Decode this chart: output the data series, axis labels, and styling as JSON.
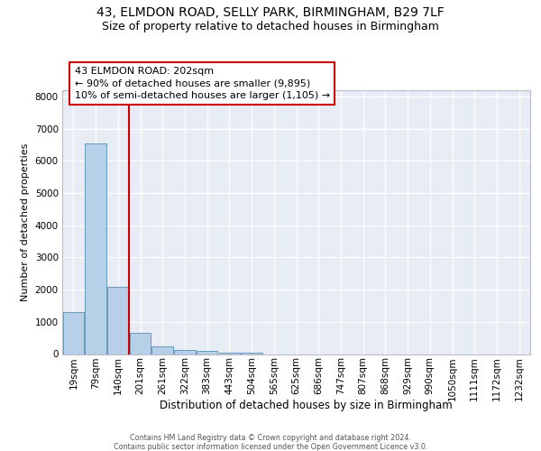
{
  "title1": "43, ELMDON ROAD, SELLY PARK, BIRMINGHAM, B29 7LF",
  "title2": "Size of property relative to detached houses in Birmingham",
  "xlabel": "Distribution of detached houses by size in Birmingham",
  "ylabel": "Number of detached properties",
  "categories": [
    "19sqm",
    "79sqm",
    "140sqm",
    "201sqm",
    "261sqm",
    "322sqm",
    "383sqm",
    "443sqm",
    "504sqm",
    "565sqm",
    "625sqm",
    "686sqm",
    "747sqm",
    "807sqm",
    "868sqm",
    "929sqm",
    "990sqm",
    "1050sqm",
    "1111sqm",
    "1172sqm",
    "1232sqm"
  ],
  "values": [
    1300,
    6550,
    2080,
    650,
    250,
    130,
    90,
    55,
    55,
    0,
    0,
    0,
    0,
    0,
    0,
    0,
    0,
    0,
    0,
    0,
    0
  ],
  "bar_color": "#b8cfe8",
  "bar_edge_color": "#6699bb",
  "vline_color": "#cc0000",
  "ann_line1": "43 ELMDON ROAD: 202sqm",
  "ann_line2": "← 90% of detached houses are smaller (9,895)",
  "ann_line3": "10% of semi-detached houses are larger (1,105) →",
  "ann_box_fc": "white",
  "ann_box_ec": "#cc0000",
  "ylim_max": 8200,
  "yticks": [
    0,
    1000,
    2000,
    3000,
    4000,
    5000,
    6000,
    7000,
    8000
  ],
  "bg_color": "#e8ecf5",
  "grid_color": "white",
  "footnote1": "Contains HM Land Registry data © Crown copyright and database right 2024.",
  "footnote2": "Contains public sector information licensed under the Open Government Licence v3.0.",
  "title1_fontsize": 10,
  "title2_fontsize": 9,
  "ylabel_fontsize": 8,
  "xlabel_fontsize": 8.5,
  "tick_fontsize": 7.5,
  "ann_fontsize": 8,
  "footnote_fontsize": 5.8
}
